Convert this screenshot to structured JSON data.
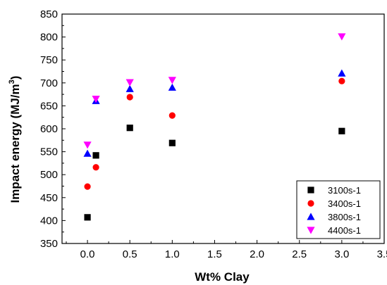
{
  "chart_data": {
    "type": "scatter",
    "xlabel": "Wt% Clay",
    "ylabel": "Impact energy (MJ/m",
    "ylabel_superscript": "3",
    "ylabel_suffix": ")",
    "xlim": [
      -0.3,
      3.5
    ],
    "ylim": [
      350,
      850
    ],
    "x_ticks": [
      "0.0",
      "0.5",
      "1.0",
      "1.5",
      "2.0",
      "2.5",
      "3.0",
      "3.5"
    ],
    "x_tick_values": [
      0.0,
      0.5,
      1.0,
      1.5,
      2.0,
      2.5,
      3.0,
      3.5
    ],
    "y_ticks": [
      "350",
      "400",
      "450",
      "500",
      "550",
      "600",
      "650",
      "700",
      "750",
      "800",
      "850"
    ],
    "y_tick_values": [
      350,
      400,
      450,
      500,
      550,
      600,
      650,
      700,
      750,
      800,
      850
    ],
    "legend_position": "bottom-right",
    "series": [
      {
        "name": "3100s-1",
        "marker": "square",
        "color": "#000000",
        "x": [
          0.0,
          0.1,
          0.5,
          1.0,
          3.0
        ],
        "y": [
          407,
          542,
          602,
          569,
          595
        ]
      },
      {
        "name": "3400s-1",
        "marker": "circle",
        "color": "#ff0000",
        "x": [
          0.0,
          0.1,
          0.5,
          1.0,
          3.0
        ],
        "y": [
          474,
          516,
          669,
          629,
          704
        ]
      },
      {
        "name": "3800s-1",
        "marker": "triangle-up",
        "color": "#0000ff",
        "x": [
          0.0,
          0.1,
          0.5,
          1.0,
          3.0
        ],
        "y": [
          546,
          661,
          687,
          690,
          721
        ]
      },
      {
        "name": "4400s-1",
        "marker": "triangle-down",
        "color": "#ff00ff",
        "x": [
          0.0,
          0.1,
          0.5,
          1.0,
          3.0
        ],
        "y": [
          565,
          665,
          701,
          706,
          801
        ]
      }
    ]
  }
}
